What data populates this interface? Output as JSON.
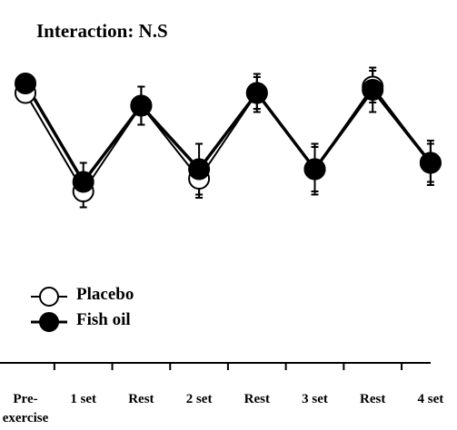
{
  "chart_data": {
    "type": "line",
    "title": "Interaction: N.S",
    "categories": [
      "Pre-exercise",
      "1 set",
      "Rest",
      "2 set",
      "Rest",
      "3 set",
      "Rest",
      "4 set"
    ],
    "ylim": [
      0,
      100
    ],
    "series": [
      {
        "name": "Placebo",
        "color": "#ffffff",
        "values": [
          85,
          54,
          81,
          58,
          85,
          61,
          87,
          63
        ],
        "errors": [
          2,
          5,
          6,
          6,
          5,
          7,
          5,
          6
        ]
      },
      {
        "name": "Fish oil",
        "color": "#000000",
        "values": [
          88,
          57,
          81,
          61,
          85,
          61,
          86,
          63
        ],
        "errors": [
          2,
          6,
          6,
          8,
          6,
          8,
          7,
          7
        ]
      }
    ]
  }
}
